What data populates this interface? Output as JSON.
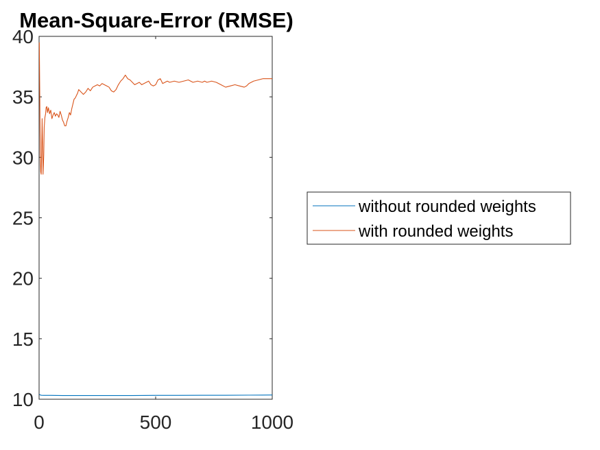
{
  "chart_data": {
    "type": "line",
    "title": "Mean-Square-Error (RMSE)",
    "xlabel": "",
    "ylabel": "",
    "xlim": [
      0,
      1000
    ],
    "ylim": [
      10,
      40
    ],
    "xticks": [
      0,
      500,
      1000
    ],
    "xtick_labels": [
      "0",
      "500",
      "1000"
    ],
    "yticks": [
      10,
      15,
      20,
      25,
      30,
      35,
      40
    ],
    "ytick_labels": [
      "10",
      "15",
      "20",
      "25",
      "30",
      "35",
      "40"
    ],
    "grid": false,
    "legend_position": "outside-right",
    "series": [
      {
        "name": "without rounded weights",
        "color": "#0072BD",
        "x": [
          1,
          5,
          10,
          20,
          50,
          100,
          150,
          200,
          300,
          400,
          500,
          600,
          700,
          800,
          900,
          1000
        ],
        "y": [
          10.4,
          10.35,
          10.33,
          10.32,
          10.32,
          10.31,
          10.31,
          10.31,
          10.31,
          10.31,
          10.32,
          10.32,
          10.33,
          10.33,
          10.34,
          10.35
        ]
      },
      {
        "name": "with rounded weights",
        "color": "#D95319",
        "x": [
          1,
          3,
          5,
          7,
          9,
          11,
          13,
          15,
          17,
          20,
          22,
          25,
          28,
          30,
          33,
          36,
          40,
          45,
          50,
          55,
          60,
          65,
          70,
          75,
          80,
          85,
          90,
          95,
          100,
          105,
          110,
          115,
          120,
          125,
          130,
          135,
          140,
          145,
          150,
          155,
          160,
          165,
          170,
          180,
          190,
          200,
          210,
          220,
          230,
          240,
          250,
          260,
          270,
          280,
          290,
          300,
          310,
          320,
          330,
          340,
          350,
          360,
          370,
          380,
          390,
          400,
          410,
          420,
          430,
          440,
          450,
          460,
          470,
          480,
          490,
          500,
          510,
          520,
          530,
          540,
          550,
          560,
          580,
          600,
          620,
          640,
          660,
          680,
          700,
          710,
          720,
          740,
          760,
          780,
          800,
          820,
          840,
          860,
          880,
          890,
          900,
          920,
          940,
          960,
          980,
          1000
        ],
        "y": [
          39.5,
          35,
          30.5,
          28.8,
          28.6,
          30.5,
          33.2,
          31,
          28.6,
          30.2,
          32.5,
          33.3,
          33.6,
          34.1,
          34.2,
          33.7,
          34.1,
          33.6,
          33.9,
          33.2,
          33.5,
          33.7,
          33.4,
          33.6,
          33.5,
          33.3,
          33.8,
          33.5,
          33.1,
          32.9,
          32.6,
          32.6,
          33.0,
          33.3,
          33.7,
          33.5,
          34.0,
          34.4,
          34.8,
          34.9,
          35.1,
          35.3,
          35.6,
          35.4,
          35.2,
          35.4,
          35.7,
          35.5,
          35.8,
          35.9,
          36.0,
          35.9,
          36.1,
          36.0,
          35.9,
          35.8,
          35.5,
          35.4,
          35.6,
          36.0,
          36.3,
          36.5,
          36.8,
          36.5,
          36.4,
          36.2,
          36.0,
          36.1,
          36.2,
          36.0,
          36.1,
          36.2,
          36.3,
          36.0,
          35.9,
          36.0,
          36.4,
          36.5,
          36.1,
          36.2,
          36.3,
          36.2,
          36.3,
          36.2,
          36.3,
          36.4,
          36.2,
          36.3,
          36.2,
          36.3,
          36.2,
          36.3,
          36.2,
          36.0,
          35.8,
          35.9,
          36.0,
          35.9,
          35.8,
          35.9,
          36.1,
          36.3,
          36.4,
          36.5,
          36.5,
          36.5
        ]
      }
    ]
  }
}
